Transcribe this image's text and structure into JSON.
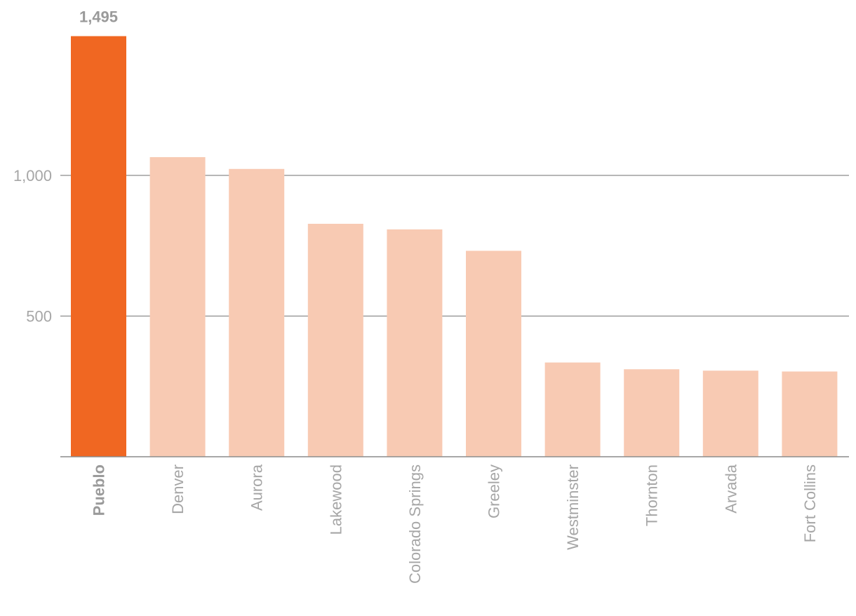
{
  "chart_data": {
    "type": "bar",
    "title": "",
    "xlabel": "",
    "ylabel": "",
    "categories": [
      "Pueblo",
      "Denver",
      "Aurora",
      "Lakewood",
      "Colorado Springs",
      "Greeley",
      "Westminster",
      "Thornton",
      "Arvada",
      "Fort Collins"
    ],
    "values": [
      1495,
      1065,
      1023,
      828,
      808,
      732,
      335,
      311,
      306,
      303
    ],
    "ylim": [
      0,
      1500
    ],
    "yticks": [
      500,
      1000
    ],
    "ytick_labels": [
      "500",
      "1,000"
    ],
    "highlight_index": 0,
    "highlight_value_label": "1,495",
    "grid": true,
    "colors": {
      "highlight": "#f06722",
      "bar": "#f8cab3",
      "grid": "#8c8c8c",
      "text": "#a6a6a6"
    }
  }
}
